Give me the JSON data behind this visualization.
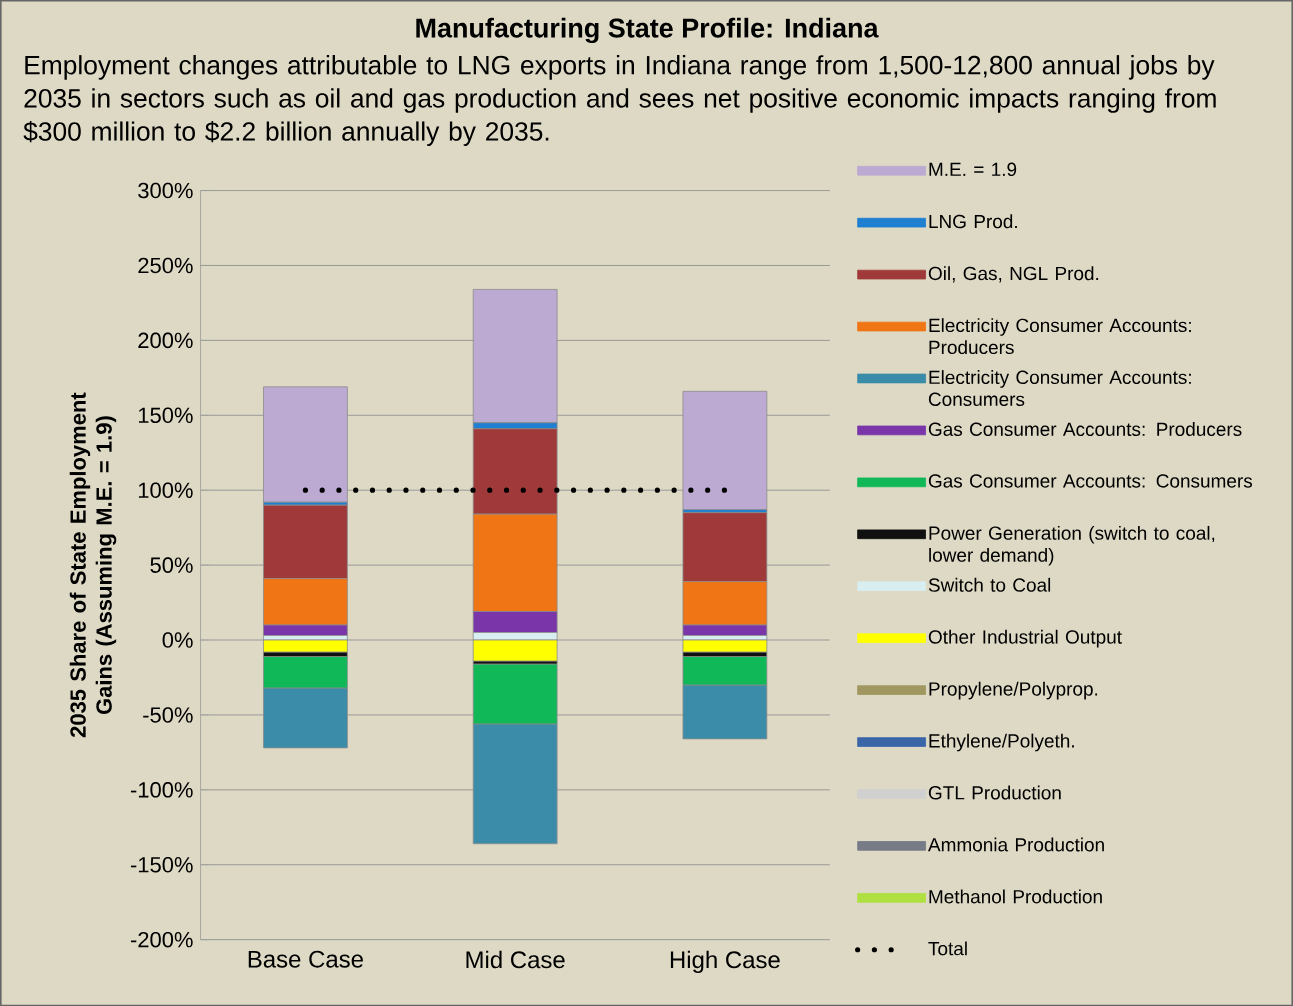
{
  "chart_data": {
    "type": "bar",
    "stacked": true,
    "title": "Manufacturing State Profile:  Indiana",
    "subtitle": "Employment changes attributable to LNG exports in Indiana range from 1,500-12,800 annual jobs by 2035 in sectors such as oil and gas production and sees net positive economic impacts ranging from $300 million to $2.2 billion annually by 2035.",
    "ylabel": "2035 Share of State Employment Gains (Assuming M.E. = 1.9)",
    "categories": [
      "Base Case",
      "Mid Case",
      "High Case"
    ],
    "ylim": [
      -200,
      300
    ],
    "yticks": [
      {
        "value": -200,
        "label": "-200%"
      },
      {
        "value": -150,
        "label": "-150%"
      },
      {
        "value": -100,
        "label": "-100%"
      },
      {
        "value": -50,
        "label": "-50%"
      },
      {
        "value": 0,
        "label": "0%"
      },
      {
        "value": 50,
        "label": "50%"
      },
      {
        "value": 100,
        "label": "100%"
      },
      {
        "value": 150,
        "label": "150%"
      },
      {
        "value": 200,
        "label": "200%"
      },
      {
        "value": 250,
        "label": "250%"
      },
      {
        "value": 300,
        "label": "300%"
      }
    ],
    "grid": "y",
    "legend": "right",
    "series": [
      {
        "name": "Methanol Production",
        "color": "#b0e040",
        "values": [
          0,
          0,
          0
        ]
      },
      {
        "name": "Ammonia Production",
        "color": "#767b86",
        "values": [
          0,
          0,
          0
        ]
      },
      {
        "name": "GTL Production",
        "color": "#d0d0d0",
        "values": [
          0,
          0,
          0
        ]
      },
      {
        "name": "Ethylene/Polyeth.",
        "color": "#3a66a8",
        "values": [
          0,
          0,
          0
        ]
      },
      {
        "name": "Propylene/Polyprop.",
        "color": "#a09860",
        "values": [
          0,
          0,
          0
        ]
      },
      {
        "name": "Other Industrial Output",
        "color": "#ffff00",
        "values": [
          -8,
          -14,
          -8
        ]
      },
      {
        "name": "Switch to Coal",
        "color": "#d8eef0",
        "values": [
          3,
          5,
          3
        ]
      },
      {
        "name": "Power Generation (switch to coal, lower demand)",
        "color": "#101010",
        "values": [
          -3,
          -2,
          -3
        ]
      },
      {
        "name": "Gas Consumer Accounts:  Consumers",
        "color": "#10b858",
        "values": [
          -21,
          -40,
          -19
        ]
      },
      {
        "name": "Gas Consumer Accounts:  Producers",
        "color": "#7a35a8",
        "values": [
          7,
          14,
          7
        ]
      },
      {
        "name": "Electricity Consumer Accounts: Consumers",
        "color": "#3a8ca8",
        "values": [
          -40,
          -80,
          -36
        ]
      },
      {
        "name": "Electricity Consumer Accounts: Producers",
        "color": "#f07515",
        "values": [
          31,
          65,
          29
        ]
      },
      {
        "name": "Oil, Gas, NGL Prod.",
        "color": "#a03a3a",
        "values": [
          49,
          57,
          46
        ]
      },
      {
        "name": "LNG Prod.",
        "color": "#1f7fd0",
        "values": [
          2,
          4,
          2
        ]
      },
      {
        "name": "M.E. = 1.9",
        "color": "#bcaad3",
        "values": [
          77,
          89,
          79
        ]
      },
      {
        "name": "Total",
        "type": "line",
        "line_style": "dotted",
        "color": "#000000",
        "values": [
          100,
          100,
          100
        ]
      }
    ]
  }
}
